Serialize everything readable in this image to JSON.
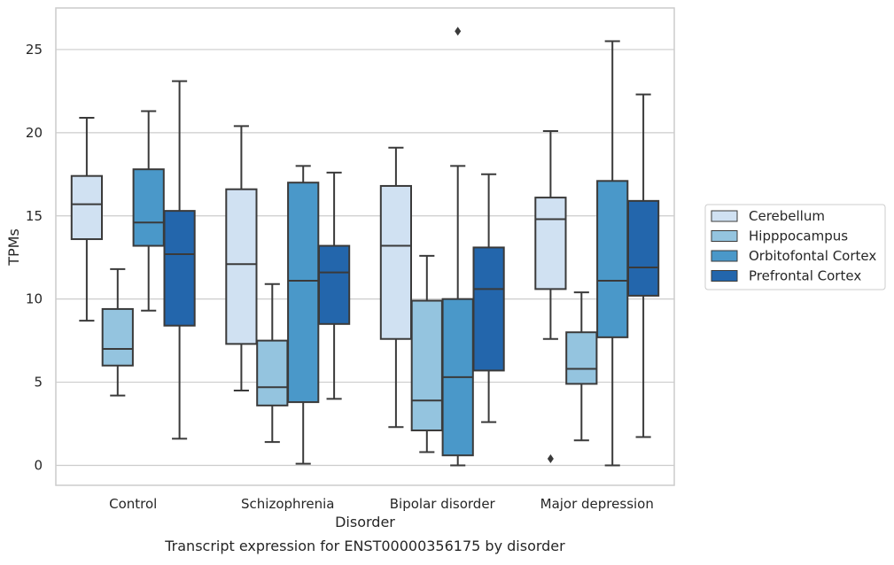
{
  "caption": "Transcript expression for ENST00000356175 by disorder",
  "colors": {
    "Cerebellum": "#d0e1f2",
    "Hipppocampus": "#94c4df",
    "Orbitofontal Cortex": "#4a98c9",
    "Prefrontal Cortex": "#2366ac",
    "box_line": "#3a3a3a",
    "grid": "#cccccc",
    "frame": "#cccccc"
  },
  "chart_data": {
    "type": "box",
    "title": "",
    "xlabel": "Disorder",
    "ylabel": "TPMs",
    "ylim": [
      -1.2,
      27.5
    ],
    "yticks": [
      0,
      5,
      10,
      15,
      20,
      25
    ],
    "grid": true,
    "legend_position": "right",
    "categories": [
      "Control",
      "Schizophrenia",
      "Bipolar disorder",
      "Major depression"
    ],
    "series": [
      {
        "name": "Cerebellum",
        "boxes": [
          {
            "whislo": 8.7,
            "q1": 13.6,
            "med": 15.7,
            "q3": 17.4,
            "whishi": 20.9,
            "fliers": []
          },
          {
            "whislo": 4.5,
            "q1": 7.3,
            "med": 12.1,
            "q3": 16.6,
            "whishi": 20.4,
            "fliers": []
          },
          {
            "whislo": 2.3,
            "q1": 7.6,
            "med": 13.2,
            "q3": 16.8,
            "whishi": 19.1,
            "fliers": []
          },
          {
            "whislo": 7.6,
            "q1": 10.6,
            "med": 14.8,
            "q3": 16.1,
            "whishi": 20.1,
            "fliers": [
              0.4
            ]
          }
        ]
      },
      {
        "name": "Hipppocampus",
        "boxes": [
          {
            "whislo": 4.2,
            "q1": 6.0,
            "med": 7.0,
            "q3": 9.4,
            "whishi": 11.8,
            "fliers": []
          },
          {
            "whislo": 1.4,
            "q1": 3.6,
            "med": 4.7,
            "q3": 7.5,
            "whishi": 10.9,
            "fliers": []
          },
          {
            "whislo": 0.8,
            "q1": 2.1,
            "med": 3.9,
            "q3": 9.9,
            "whishi": 12.6,
            "fliers": []
          },
          {
            "whislo": 1.5,
            "q1": 4.9,
            "med": 5.8,
            "q3": 8.0,
            "whishi": 10.4,
            "fliers": []
          }
        ]
      },
      {
        "name": "Orbitofontal Cortex",
        "boxes": [
          {
            "whislo": 9.3,
            "q1": 13.2,
            "med": 14.6,
            "q3": 17.8,
            "whishi": 21.3,
            "fliers": []
          },
          {
            "whislo": 0.1,
            "q1": 3.8,
            "med": 11.1,
            "q3": 17.0,
            "whishi": 18.0,
            "fliers": []
          },
          {
            "whislo": 0.0,
            "q1": 0.6,
            "med": 5.3,
            "q3": 10.0,
            "whishi": 18.0,
            "fliers": [
              26.1
            ]
          },
          {
            "whislo": 0.0,
            "q1": 7.7,
            "med": 11.1,
            "q3": 17.1,
            "whishi": 25.5,
            "fliers": []
          }
        ]
      },
      {
        "name": "Prefrontal Cortex",
        "boxes": [
          {
            "whislo": 1.6,
            "q1": 8.4,
            "med": 12.7,
            "q3": 15.3,
            "whishi": 23.1,
            "fliers": []
          },
          {
            "whislo": 4.0,
            "q1": 8.5,
            "med": 11.6,
            "q3": 13.2,
            "whishi": 17.6,
            "fliers": []
          },
          {
            "whislo": 2.6,
            "q1": 5.7,
            "med": 10.6,
            "q3": 13.1,
            "whishi": 17.5,
            "fliers": []
          },
          {
            "whislo": 1.7,
            "q1": 10.2,
            "med": 11.9,
            "q3": 15.9,
            "whishi": 22.3,
            "fliers": []
          }
        ]
      }
    ]
  }
}
